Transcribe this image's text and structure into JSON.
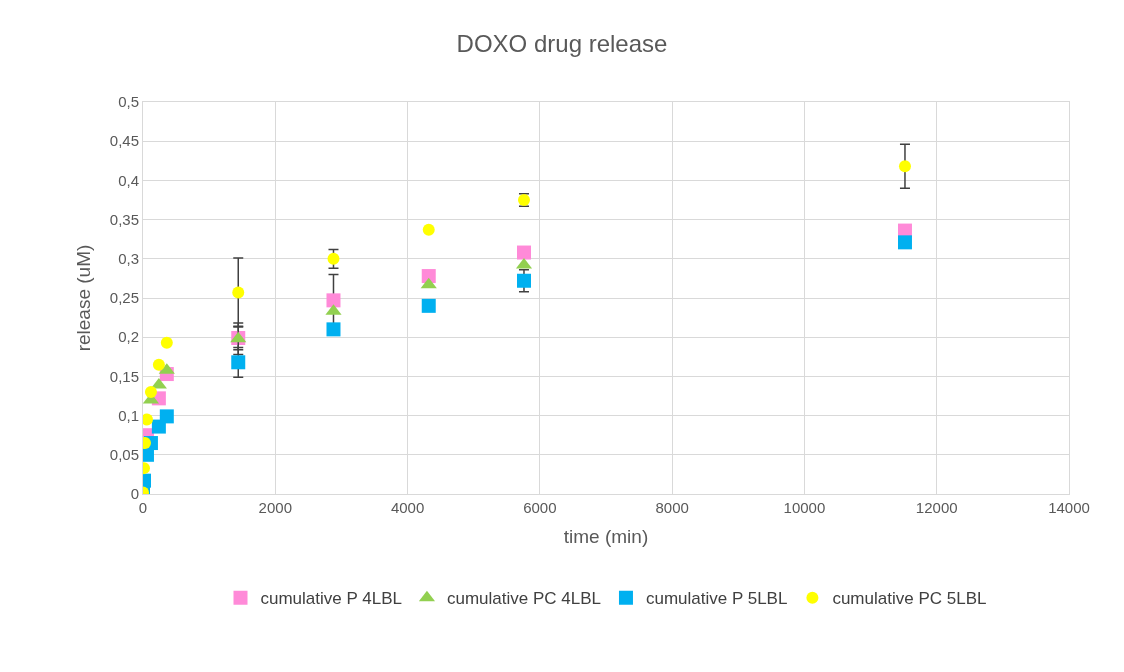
{
  "chart_data": {
    "type": "scatter",
    "title": "DOXO drug release",
    "xlabel": "time (min)",
    "ylabel": "release (uM)",
    "x": [
      0,
      15,
      30,
      60,
      120,
      240,
      360,
      1440,
      2880,
      4320,
      5760,
      11520
    ],
    "series": [
      {
        "name": "cumulative P 4LBL",
        "color": "#ff8ad8",
        "marker": "square",
        "values": [
          null,
          null,
          null,
          0.075,
          null,
          0.122,
          0.153,
          0.199,
          0.247,
          0.278,
          0.308,
          0.336
        ],
        "errors": [
          null,
          null,
          null,
          null,
          null,
          null,
          null,
          0.015,
          0.033,
          null,
          null,
          null
        ]
      },
      {
        "name": "cumulative PC 4LBL",
        "color": "#92d050",
        "marker": "triangle",
        "values": [
          null,
          null,
          null,
          null,
          0.12,
          0.139,
          0.158,
          0.198,
          0.233,
          0.267,
          0.292,
          null
        ],
        "errors": [
          null,
          null,
          null,
          null,
          null,
          null,
          null,
          0.02,
          null,
          null,
          null,
          null
        ]
      },
      {
        "name": "cumulative P 5LBL",
        "color": "#00b0f0",
        "marker": "square",
        "values": [
          0.001,
          0.017,
          null,
          0.05,
          0.065,
          0.086,
          0.099,
          0.168,
          0.21,
          0.24,
          0.272,
          0.321
        ],
        "errors": [
          null,
          null,
          null,
          null,
          null,
          null,
          null,
          0.019,
          null,
          null,
          0.014,
          null
        ]
      },
      {
        "name": "cumulative PC 5LBL",
        "color": "#ffff00",
        "marker": "circle",
        "values": [
          0.002,
          0.033,
          0.065,
          0.095,
          0.13,
          0.165,
          0.193,
          0.257,
          0.3,
          0.337,
          0.375,
          0.418
        ],
        "errors": [
          null,
          null,
          null,
          null,
          null,
          null,
          null,
          0.044,
          0.012,
          null,
          0.008,
          0.028
        ]
      }
    ],
    "xlim": [
      0,
      14000
    ],
    "xticks": [
      0,
      2000,
      4000,
      6000,
      8000,
      10000,
      12000,
      14000
    ],
    "ylim": [
      0,
      0.5
    ],
    "yticks": [
      {
        "value": 0,
        "label": "0"
      },
      {
        "value": 0.05,
        "label": "0,05"
      },
      {
        "value": 0.1,
        "label": "0,1"
      },
      {
        "value": 0.15,
        "label": "0,15"
      },
      {
        "value": 0.2,
        "label": "0,2"
      },
      {
        "value": 0.25,
        "label": "0,25"
      },
      {
        "value": 0.3,
        "label": "0,3"
      },
      {
        "value": 0.35,
        "label": "0,35"
      },
      {
        "value": 0.4,
        "label": "0,4"
      },
      {
        "value": 0.45,
        "label": "0,45"
      },
      {
        "value": 0.5,
        "label": "0,5"
      }
    ],
    "grid": true,
    "legend": "bottom"
  }
}
